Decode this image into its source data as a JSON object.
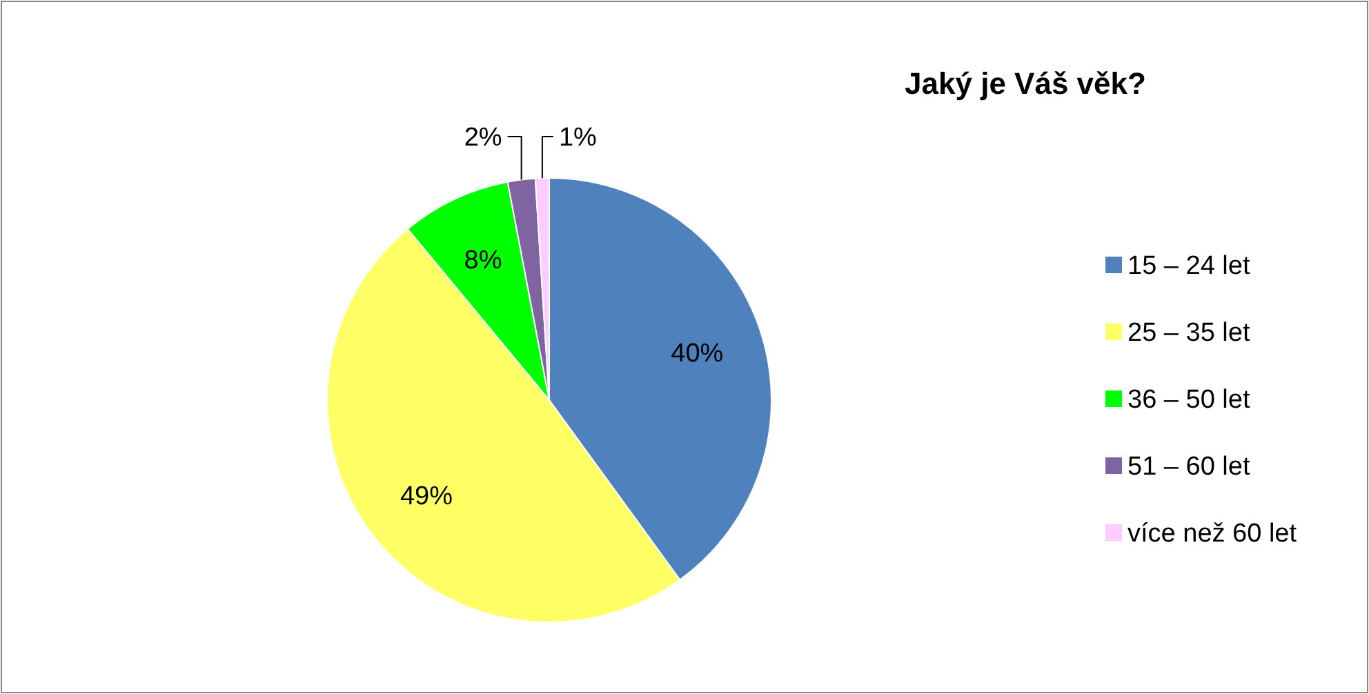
{
  "chart_data": {
    "type": "pie",
    "title": "Jaký je Váš věk?",
    "categories": [
      "15 – 24 let",
      "25 – 35 let",
      "36 – 50 let",
      "51 – 60 let",
      "více než 60 let"
    ],
    "values": [
      40,
      49,
      8,
      2,
      1
    ],
    "colors": [
      "#4f81bd",
      "#ffff66",
      "#00ff00",
      "#8064a2",
      "#ffccff"
    ],
    "value_labels": [
      "40%",
      "49%",
      "8%",
      "2%",
      "1%"
    ],
    "legend": "right"
  }
}
